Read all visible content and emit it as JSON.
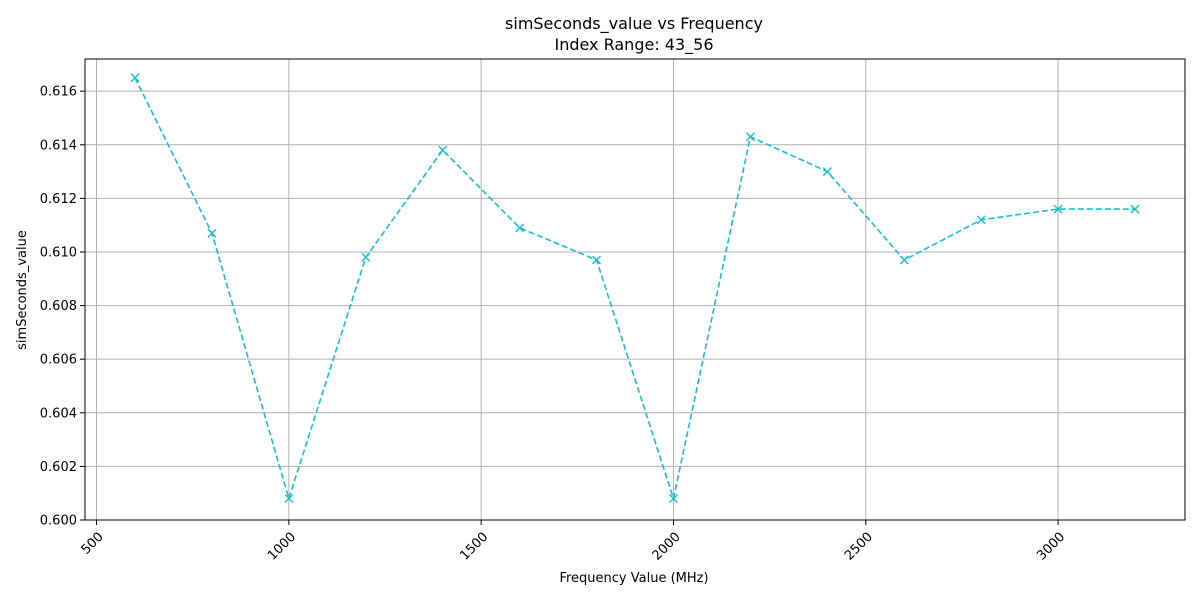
{
  "chart_data": {
    "type": "line",
    "title": "simSeconds_value vs Frequency",
    "subtitle": "Index Range: 43_56",
    "xlabel": "Frequency Value (MHz)",
    "ylabel": "simSeconds_value",
    "xlim": [
      470,
      3330
    ],
    "ylim": [
      0.6,
      0.6172
    ],
    "x_ticks": [
      500,
      1000,
      1500,
      2000,
      2500,
      3000
    ],
    "y_ticks": [
      0.6,
      0.602,
      0.604,
      0.606,
      0.608,
      0.61,
      0.612,
      0.614,
      0.616
    ],
    "x_tick_rotation": -45,
    "grid": true,
    "series": [
      {
        "color": "#17becf",
        "marker": "x",
        "linestyle": "dashed",
        "x": [
          600,
          800,
          1000,
          1200,
          1400,
          1600,
          1800,
          2000,
          2200,
          2400,
          2600,
          2800,
          3000,
          3200
        ],
        "values": [
          0.6165,
          0.6107,
          0.6008,
          0.6098,
          0.6138,
          0.6109,
          0.6097,
          0.6008,
          0.6143,
          0.613,
          0.6097,
          0.6112,
          0.6116,
          0.6116
        ]
      }
    ]
  }
}
